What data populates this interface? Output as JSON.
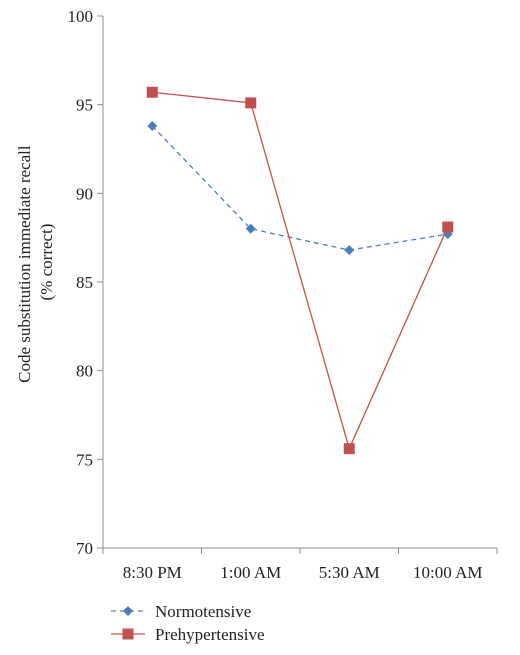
{
  "chart_data": {
    "type": "line",
    "categories": [
      "8:30 PM",
      "1:00 AM",
      "5:30 AM",
      "10:00 AM"
    ],
    "ylabel_lines": [
      "Code substitution immediate recall",
      "(% correct)"
    ],
    "ylim": [
      70,
      100
    ],
    "yticks": [
      70,
      75,
      80,
      85,
      90,
      95,
      100
    ],
    "grid": false,
    "legend_position": "bottom-left",
    "series": [
      {
        "name": "Normotensive",
        "values": [
          93.8,
          88.0,
          86.8,
          87.7
        ],
        "color": "#4a7ebb",
        "line_style": "dashed",
        "marker": "diamond"
      },
      {
        "name": "Prehypertensive",
        "values": [
          95.7,
          95.1,
          75.6,
          88.1
        ],
        "color": "#c0504d",
        "line_style": "solid",
        "marker": "square"
      }
    ]
  }
}
